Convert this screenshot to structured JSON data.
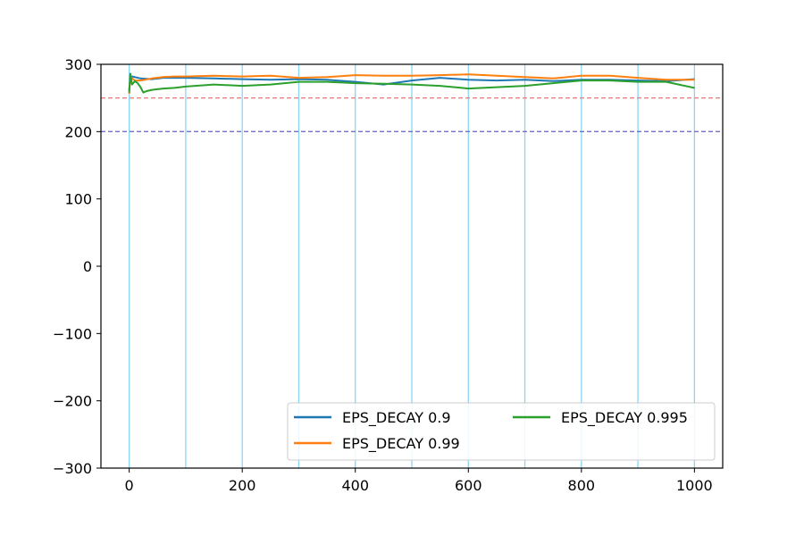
{
  "chart_data": {
    "type": "line",
    "xlim": [
      -50,
      1050
    ],
    "ylim": [
      -300,
      300
    ],
    "x_ticks": [
      0,
      200,
      400,
      600,
      800,
      1000
    ],
    "x_tick_labels": [
      "0",
      "200",
      "400",
      "600",
      "800",
      "1000"
    ],
    "y_ticks": [
      300,
      200,
      100,
      0,
      -100,
      -200,
      -300
    ],
    "y_tick_labels": [
      "300",
      "200",
      "100",
      "0",
      "−100",
      "−200",
      "−300"
    ],
    "vertical_reference_lines": [
      0,
      100,
      200,
      300,
      400,
      500,
      600,
      700,
      800,
      900,
      1000
    ],
    "horizontal_reference_lines": [
      {
        "y": 250,
        "color": "#f08080",
        "style": "dashed"
      },
      {
        "y": 200,
        "color": "#7070c8",
        "style": "dashed"
      }
    ],
    "grid": false,
    "legend_position": "lower-right",
    "legend_columns": 2,
    "series": [
      {
        "name": "EPS_DECAY 0.9",
        "color": "#1f77b4",
        "x": [
          0,
          2,
          5,
          10,
          20,
          40,
          60,
          80,
          100,
          150,
          200,
          250,
          300,
          350,
          400,
          450,
          500,
          550,
          600,
          650,
          700,
          750,
          800,
          850,
          900,
          950,
          1000
        ],
        "y": [
          262,
          278,
          282,
          281,
          279,
          278,
          280,
          280,
          280,
          279,
          278,
          277,
          278,
          277,
          274,
          270,
          276,
          280,
          277,
          276,
          277,
          275,
          277,
          277,
          276,
          275,
          278
        ]
      },
      {
        "name": "EPS_DECAY 0.99",
        "color": "#ff7f0e",
        "x": [
          0,
          2,
          5,
          10,
          20,
          40,
          60,
          80,
          100,
          150,
          200,
          250,
          300,
          350,
          400,
          450,
          500,
          550,
          600,
          650,
          700,
          750,
          800,
          850,
          900,
          950,
          1000
        ],
        "y": [
          256,
          283,
          279,
          276,
          276,
          279,
          281,
          282,
          282,
          283,
          282,
          283,
          280,
          281,
          284,
          283,
          283,
          284,
          285,
          283,
          281,
          279,
          283,
          283,
          280,
          277,
          277
        ]
      },
      {
        "name": "EPS_DECAY 0.995",
        "color": "#2ca02c",
        "x": [
          0,
          2,
          5,
          10,
          15,
          20,
          25,
          30,
          40,
          60,
          80,
          100,
          150,
          200,
          250,
          300,
          350,
          400,
          450,
          500,
          550,
          600,
          650,
          700,
          750,
          800,
          850,
          900,
          950,
          1000
        ],
        "y": [
          258,
          286,
          270,
          275,
          272,
          266,
          258,
          260,
          262,
          264,
          265,
          267,
          270,
          268,
          270,
          274,
          274,
          272,
          271,
          270,
          268,
          264,
          266,
          268,
          272,
          276,
          276,
          274,
          274,
          265
        ]
      }
    ]
  }
}
